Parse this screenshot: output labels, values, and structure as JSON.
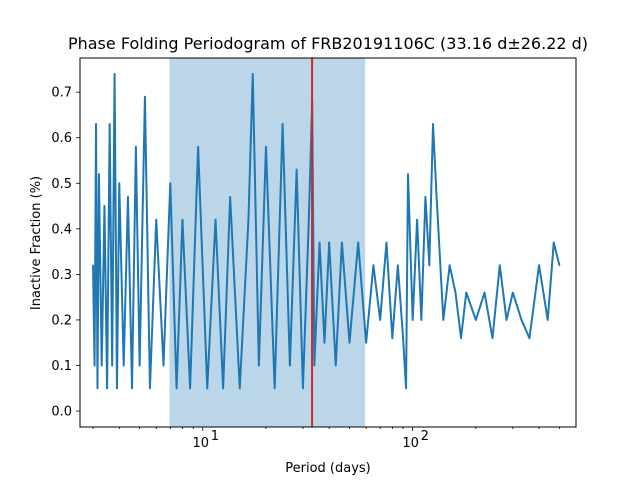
{
  "chart_data": {
    "type": "line",
    "title": "Phase Folding Periodogram of FRB20191106C (33.16 d±26.22 d)",
    "xlabel": "Period (days)",
    "ylabel": "Inactive Fraction (%)",
    "xscale": "log",
    "xlim": [
      2.6,
      600
    ],
    "ylim": [
      -0.035,
      0.775
    ],
    "x_major_ticks": [
      10,
      100
    ],
    "x_major_tick_labels": [
      "10",
      "10"
    ],
    "x_major_tick_exponents": [
      "1",
      "2"
    ],
    "x_minor_ticks": [
      3,
      4,
      5,
      6,
      7,
      8,
      9,
      20,
      30,
      40,
      50,
      60,
      70,
      80,
      90,
      200,
      300,
      400,
      500
    ],
    "y_ticks": [
      0.0,
      0.1,
      0.2,
      0.3,
      0.4,
      0.5,
      0.6,
      0.7
    ],
    "y_tick_labels": [
      "0.0",
      "0.1",
      "0.2",
      "0.3",
      "0.4",
      "0.5",
      "0.6",
      "0.7"
    ],
    "best_period": 33.16,
    "period_uncertainty": 26.22,
    "shaded_range": [
      6.94,
      59.38
    ],
    "colors": {
      "series": "#1f77b4",
      "band": "#1f77b4",
      "marker_line": "#d62728"
    },
    "series": [
      {
        "x": [
          3.0,
          3.05,
          3.1,
          3.15,
          3.2,
          3.3,
          3.4,
          3.5,
          3.6,
          3.7,
          3.8,
          3.9,
          4.0,
          4.2,
          4.4,
          4.6,
          4.8,
          5.0,
          5.3,
          5.6,
          6.0,
          6.5,
          7.0,
          7.5,
          8.0,
          8.7,
          9.5,
          10.5,
          11.5,
          12.5,
          13.5,
          15.0,
          16.5,
          17.3,
          18.5,
          20.0,
          22.0,
          24.0,
          26.0,
          28.0,
          30.0,
          32.0,
          33.2,
          34.0,
          36.0,
          38.0,
          40.0,
          43.0,
          46.0,
          50.0,
          55.0,
          60.0,
          65.0,
          70.0,
          75.0,
          80.0,
          85.0,
          90.0,
          93.0,
          95.0,
          100.0,
          105.0,
          110.0,
          115.0,
          120.0,
          125.0,
          130.0,
          140.0,
          150.0,
          160.0,
          170.0,
          180.0,
          200.0,
          220.0,
          240.0,
          260.0,
          280.0,
          300.0,
          330.0,
          360.0,
          400.0,
          440.0,
          470.0,
          500.0
        ],
        "y": [
          0.32,
          0.1,
          0.63,
          0.05,
          0.52,
          0.1,
          0.45,
          0.05,
          0.63,
          0.1,
          0.74,
          0.05,
          0.5,
          0.1,
          0.47,
          0.05,
          0.58,
          0.1,
          0.69,
          0.05,
          0.42,
          0.1,
          0.5,
          0.05,
          0.42,
          0.05,
          0.58,
          0.05,
          0.42,
          0.05,
          0.47,
          0.05,
          0.42,
          0.74,
          0.1,
          0.58,
          0.05,
          0.63,
          0.1,
          0.53,
          0.05,
          0.42,
          0.68,
          0.1,
          0.37,
          0.15,
          0.37,
          0.1,
          0.37,
          0.15,
          0.37,
          0.15,
          0.32,
          0.2,
          0.37,
          0.16,
          0.32,
          0.16,
          0.05,
          0.52,
          0.2,
          0.42,
          0.2,
          0.47,
          0.32,
          0.63,
          0.47,
          0.2,
          0.32,
          0.26,
          0.16,
          0.26,
          0.2,
          0.26,
          0.16,
          0.32,
          0.2,
          0.26,
          0.2,
          0.16,
          0.32,
          0.2,
          0.37,
          0.32
        ]
      }
    ]
  }
}
